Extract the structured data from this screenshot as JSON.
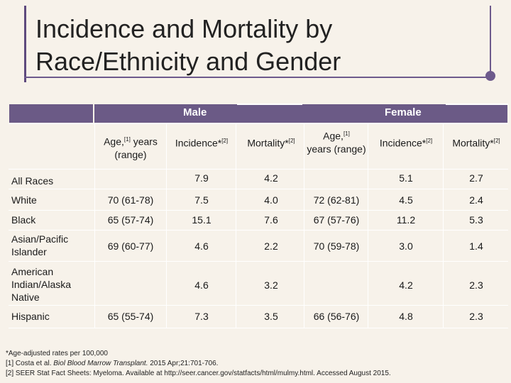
{
  "title": "Incidence and Mortality by Race/Ethnicity and Gender",
  "groups": {
    "male": "Male",
    "female": "Female"
  },
  "columns": {
    "age_male": "Age,",
    "age_sup": "[1]",
    "age_male_rest": "years (range)",
    "incidence_male": "Incidence*",
    "incidence_sup": "[2]",
    "mortality_male": "Mortality*",
    "mortality_sup": "[2]",
    "age_female": "Age,",
    "age_female_rest": "years (range)",
    "incidence_female": "Incidence*",
    "mortality_female": "Mortality*"
  },
  "rows": [
    {
      "label": "All Races",
      "age_m": "",
      "inc_m": "7.9",
      "mort_m": "4.2",
      "age_f": "",
      "inc_f": "5.1",
      "mort_f": "2.7"
    },
    {
      "label": "White",
      "age_m": "70 (61-78)",
      "inc_m": "7.5",
      "mort_m": "4.0",
      "age_f": "72 (62-81)",
      "inc_f": "4.5",
      "mort_f": "2.4"
    },
    {
      "label": "Black",
      "age_m": "65 (57-74)",
      "inc_m": "15.1",
      "mort_m": "7.6",
      "age_f": "67 (57-76)",
      "inc_f": "11.2",
      "mort_f": "5.3"
    },
    {
      "label": "Asian/Pacific Islander",
      "age_m": "69 (60-77)",
      "inc_m": "4.6",
      "mort_m": "2.2",
      "age_f": "70 (59-78)",
      "inc_f": "3.0",
      "mort_f": "1.4"
    },
    {
      "label": "American Indian/Alaska Native",
      "age_m": "",
      "inc_m": "4.6",
      "mort_m": "3.2",
      "age_f": "",
      "inc_f": "4.2",
      "mort_f": "2.3"
    },
    {
      "label": "Hispanic",
      "age_m": "65 (55-74)",
      "inc_m": "7.3",
      "mort_m": "3.5",
      "age_f": "66 (56-76)",
      "inc_f": "4.8",
      "mort_f": "2.3"
    }
  ],
  "footnotes": {
    "f0": "*Age-adjusted rates per 100,000",
    "f1_pre": "[1] Costa et al.",
    "f1_journal": "Biol Blood Marrow Transplant.",
    "f1_post": "2015 Apr;21:701-706.",
    "f2": "[2] SEER Stat Fact Sheets: Myeloma. Available at http://seer.cancer.gov/statfacts/html/mulmy.html. Accessed August 2015."
  }
}
